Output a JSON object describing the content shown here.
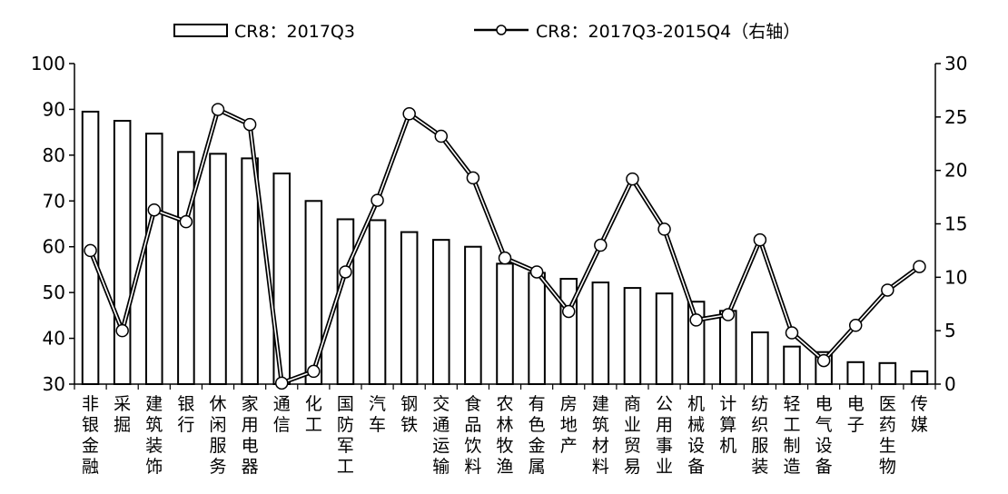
{
  "chart_data": {
    "type": "bar",
    "categories": [
      "非银金融",
      "采掘",
      "建筑装饰",
      "银行",
      "休闲服务",
      "家用电器",
      "通信",
      "化工",
      "国防军工",
      "汽车",
      "钢铁",
      "交通运输",
      "食品饮料",
      "农林牧渔",
      "有色金属",
      "房地产",
      "建筑材料",
      "商业贸易",
      "公用事业",
      "机械设备",
      "计算机",
      "纺织服装",
      "轻工制造",
      "电气设备",
      "电子",
      "医药生物",
      "传媒"
    ],
    "series": [
      {
        "name": "CR8：2017Q3",
        "type": "bar",
        "axis": "left",
        "values": [
          89.5,
          87.5,
          84.7,
          80.7,
          80.3,
          79.3,
          76.0,
          70.0,
          66.0,
          65.8,
          63.2,
          61.5,
          60.0,
          56.3,
          54.3,
          53.0,
          52.2,
          51.0,
          49.8,
          48.0,
          46.0,
          41.3,
          38.2,
          37.0,
          34.8,
          34.6,
          32.8
        ]
      },
      {
        "name": "CR8：2017Q3-2015Q4（右轴）",
        "type": "line",
        "axis": "right",
        "values": [
          12.5,
          5.0,
          16.3,
          15.2,
          25.7,
          24.3,
          0.1,
          1.2,
          10.5,
          17.2,
          25.3,
          23.2,
          19.3,
          11.8,
          10.5,
          6.8,
          13.0,
          19.2,
          14.5,
          6.0,
          6.5,
          13.5,
          4.8,
          2.2,
          5.5,
          8.8,
          11.0
        ]
      }
    ],
    "yAxisLeft": {
      "min": 30,
      "max": 100,
      "ticks": [
        "30",
        "40",
        "50",
        "60",
        "70",
        "80",
        "90",
        "100"
      ]
    },
    "yAxisRight": {
      "min": 0,
      "max": 30,
      "ticks": [
        "0",
        "5",
        "10",
        "15",
        "20",
        "25",
        "30"
      ]
    },
    "legend": {
      "position": "top",
      "bar_label": "CR8：2017Q3",
      "line_label": "CR8：2017Q3-2015Q4（右轴）"
    },
    "grid": false,
    "title": "",
    "xlabel": "",
    "ylabel": ""
  }
}
